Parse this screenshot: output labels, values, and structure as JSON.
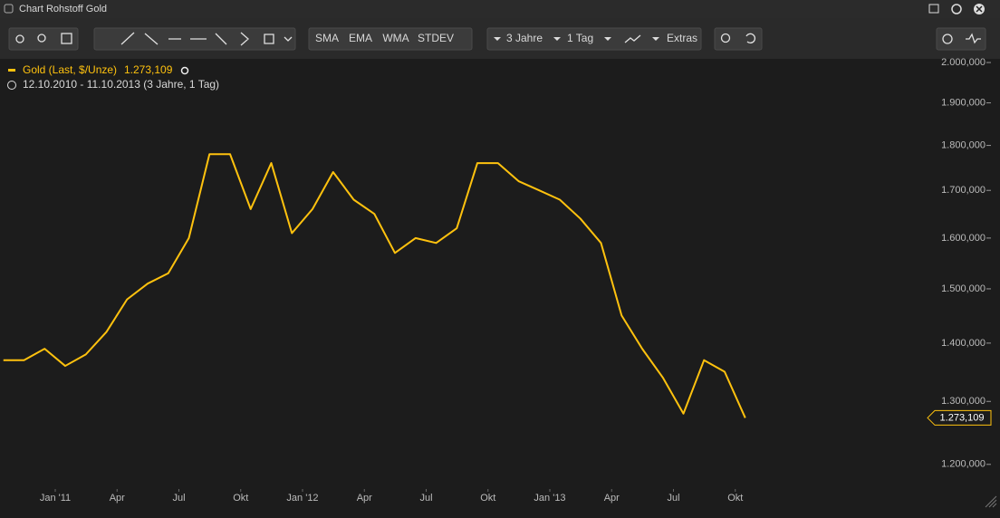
{
  "window": {
    "title": "Chart Rohstoff Gold"
  },
  "toolbar": {
    "indicators": [
      "SMA",
      "EMA",
      "WMA",
      "STDEV"
    ],
    "period": "3 Jahre",
    "interval": "1 Tag",
    "extras": "Extras"
  },
  "chart_data": {
    "type": "line",
    "range": "12.10.2010 - 11.10.2013 (3 Jahre, 1 Tag)",
    "x": [
      "2010-10",
      "2010-11",
      "2010-12",
      "2011-01",
      "2011-02",
      "2011-03",
      "2011-04",
      "2011-05",
      "2011-06",
      "2011-07",
      "2011-08",
      "2011-09",
      "2011-10",
      "2011-11",
      "2011-12",
      "2012-01",
      "2012-02",
      "2012-03",
      "2012-04",
      "2012-05",
      "2012-06",
      "2012-07",
      "2012-08",
      "2012-09",
      "2012-10",
      "2012-11",
      "2012-12",
      "2013-01",
      "2013-02",
      "2013-03",
      "2013-04",
      "2013-05",
      "2013-06",
      "2013-07",
      "2013-08",
      "2013-09",
      "2013-10"
    ],
    "series": [
      {
        "name": "Gold (Last, $/Unze)",
        "color": "#ffc20e",
        "values": [
          1370,
          1370,
          1390,
          1360,
          1380,
          1420,
          1480,
          1510,
          1530,
          1600,
          1780,
          1780,
          1660,
          1760,
          1610,
          1660,
          1740,
          1680,
          1650,
          1570,
          1600,
          1590,
          1620,
          1760,
          1760,
          1720,
          1700,
          1680,
          1640,
          1590,
          1450,
          1390,
          1340,
          1280,
          1370,
          1350,
          1273.109
        ],
        "value_labels": [
          null,
          null,
          null,
          null,
          null,
          null,
          null,
          null,
          null,
          null,
          null,
          null,
          null,
          null,
          null,
          null,
          null,
          null,
          null,
          null,
          null,
          null,
          null,
          null,
          null,
          null,
          null,
          null,
          null,
          null,
          null,
          null,
          null,
          null,
          null,
          null,
          "1.273,109"
        ]
      }
    ],
    "log_scale": true,
    "ylim": [
      1163,
      2007
    ],
    "yticks": [
      {
        "value": 1200,
        "label": "1.200,000"
      },
      {
        "value": 1300,
        "label": "1.300,000"
      },
      {
        "value": 1400,
        "label": "1.400,000"
      },
      {
        "value": 1500,
        "label": "1.500,000"
      },
      {
        "value": 1600,
        "label": "1.600,000"
      },
      {
        "value": 1700,
        "label": "1.700,000"
      },
      {
        "value": 1800,
        "label": "1.800,000"
      },
      {
        "value": 1900,
        "label": "1.900,000"
      },
      {
        "value": 2000,
        "label": "2.000,000"
      }
    ],
    "xticks": [
      {
        "value": "2011-01",
        "label": "Jan '11"
      },
      {
        "value": "2011-04",
        "label": "Apr"
      },
      {
        "value": "2011-07",
        "label": "Jul"
      },
      {
        "value": "2011-10",
        "label": "Okt"
      },
      {
        "value": "2012-01",
        "label": "Jan '12"
      },
      {
        "value": "2012-04",
        "label": "Apr"
      },
      {
        "value": "2012-07",
        "label": "Jul"
      },
      {
        "value": "2012-10",
        "label": "Okt"
      },
      {
        "value": "2013-01",
        "label": "Jan '13"
      },
      {
        "value": "2013-04",
        "label": "Apr"
      },
      {
        "value": "2013-07",
        "label": "Jul"
      },
      {
        "value": "2013-10",
        "label": "Okt"
      }
    ],
    "grid": false
  }
}
